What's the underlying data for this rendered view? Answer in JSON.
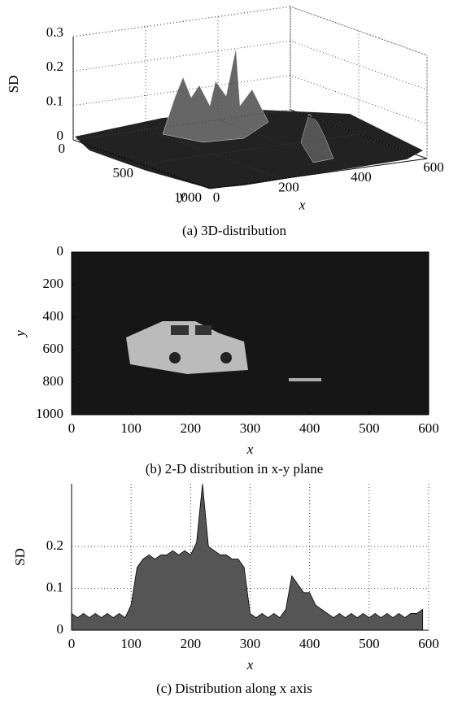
{
  "chart_data": [
    {
      "type": "surface3d",
      "caption": "(a) 3D-distribution",
      "xlabel": "x",
      "ylabel": "y",
      "zlabel": "SD",
      "xlim": [
        0,
        600
      ],
      "ylim": [
        0,
        1000
      ],
      "zlim": [
        0,
        0.3
      ],
      "xticks": [
        0,
        200,
        400,
        600
      ],
      "yticks": [
        0,
        500,
        1000
      ],
      "zticks": [
        0,
        0.1,
        0.2,
        0.3
      ],
      "grid": true
    },
    {
      "type": "heatmap",
      "caption": "(b) 2-D distribution in x-y plane",
      "xlabel": "x",
      "ylabel": "y",
      "xlim": [
        0,
        600
      ],
      "ylim": [
        0,
        1000
      ],
      "y_inverted": true,
      "xticks": [
        0,
        100,
        200,
        300,
        400,
        500,
        600
      ],
      "yticks": [
        0,
        200,
        400,
        600,
        800,
        1000
      ]
    },
    {
      "type": "area",
      "caption": "(c) Distribution along x axis",
      "xlabel": "x",
      "ylabel": "SD",
      "color": "#555555",
      "grid": true,
      "xlim": [
        0,
        600
      ],
      "ylim": [
        0,
        0.35
      ],
      "xticks": [
        0,
        100,
        200,
        300,
        400,
        500,
        600
      ],
      "yticks": [
        0,
        0.1,
        0.2
      ],
      "x": [
        0,
        10,
        20,
        30,
        40,
        50,
        60,
        70,
        80,
        90,
        100,
        110,
        120,
        130,
        140,
        150,
        160,
        170,
        180,
        190,
        200,
        210,
        220,
        230,
        240,
        250,
        260,
        270,
        280,
        290,
        300,
        310,
        320,
        330,
        340,
        350,
        360,
        370,
        380,
        390,
        400,
        410,
        420,
        430,
        440,
        450,
        460,
        470,
        480,
        490,
        500,
        510,
        520,
        530,
        540,
        550,
        560,
        570,
        580,
        590
      ],
      "values": [
        0.04,
        0.03,
        0.04,
        0.03,
        0.04,
        0.03,
        0.04,
        0.03,
        0.04,
        0.03,
        0.06,
        0.15,
        0.17,
        0.18,
        0.17,
        0.18,
        0.18,
        0.19,
        0.18,
        0.19,
        0.18,
        0.21,
        0.35,
        0.2,
        0.19,
        0.18,
        0.18,
        0.17,
        0.17,
        0.15,
        0.04,
        0.03,
        0.04,
        0.03,
        0.04,
        0.03,
        0.05,
        0.13,
        0.11,
        0.09,
        0.09,
        0.06,
        0.05,
        0.04,
        0.03,
        0.04,
        0.03,
        0.04,
        0.03,
        0.04,
        0.03,
        0.04,
        0.03,
        0.04,
        0.03,
        0.04,
        0.03,
        0.04,
        0.04,
        0.05
      ]
    }
  ]
}
